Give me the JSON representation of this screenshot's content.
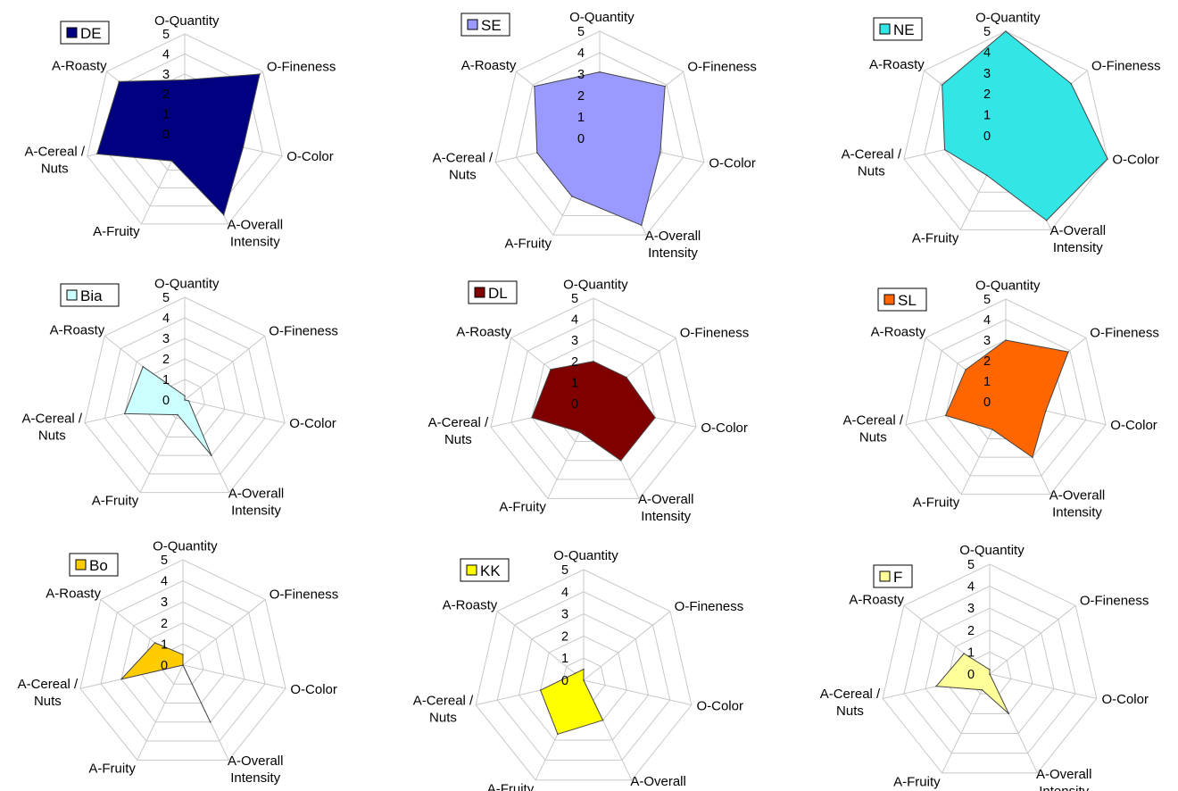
{
  "chart_data": [
    {
      "type": "radar",
      "name": "DE",
      "color": "#000080",
      "axes": [
        "O-Quantity",
        "O-Fineness",
        "O-Color",
        "A-Overall Intensity",
        "A-Fruity",
        "A-Cereal / Nuts",
        "A-Roasty"
      ],
      "ticks": [
        "0",
        "1",
        "2",
        "3",
        "4",
        "5"
      ],
      "rmax": 5,
      "values": [
        2.7,
        4.8,
        3.0,
        4.5,
        1.5,
        4.5,
        4.2
      ]
    },
    {
      "type": "radar",
      "name": "SE",
      "color": "#9999ff",
      "axes": [
        "O-Quantity",
        "O-Fineness",
        "O-Color",
        "A-Overall Intensity",
        "A-Fruity",
        "A-Cereal / Nuts",
        "A-Roasty"
      ],
      "ticks": [
        "0",
        "1",
        "2",
        "3",
        "4",
        "5"
      ],
      "rmax": 5,
      "values": [
        3.1,
        3.9,
        2.9,
        4.5,
        3.0,
        3.0,
        3.9
      ]
    },
    {
      "type": "radar",
      "name": "NE",
      "color": "#33e6e6",
      "axes": [
        "O-Quantity",
        "O-Fineness",
        "O-Color",
        "A-Overall Intensity",
        "A-Fruity",
        "A-Cereal / Nuts",
        "A-Roasty"
      ],
      "ticks": [
        "0",
        "1",
        "2",
        "3",
        "4",
        "5"
      ],
      "rmax": 5,
      "values": [
        5.0,
        4.0,
        5.0,
        4.5,
        2.1,
        3.0,
        3.9
      ]
    },
    {
      "type": "radar",
      "name": "Bia",
      "color": "#ccffff",
      "axes": [
        "O-Quantity",
        "O-Fineness",
        "O-Color",
        "A-Overall Intensity",
        "A-Fruity",
        "A-Cereal / Nuts",
        "A-Roasty"
      ],
      "ticks": [
        "0",
        "1",
        "2",
        "3",
        "4",
        "5"
      ],
      "rmax": 5,
      "values": [
        0.2,
        0.0,
        0.2,
        3.0,
        0.8,
        3.0,
        2.6
      ]
    },
    {
      "type": "radar",
      "name": "DL",
      "color": "#800000",
      "axes": [
        "O-Quantity",
        "O-Fineness",
        "O-Color",
        "A-Overall Intensity",
        "A-Fruity",
        "A-Cereal / Nuts",
        "A-Roasty"
      ],
      "ticks": [
        "0",
        "1",
        "2",
        "3",
        "4",
        "5"
      ],
      "rmax": 5,
      "values": [
        2.0,
        2.0,
        3.0,
        3.0,
        1.5,
        3.0,
        2.6
      ]
    },
    {
      "type": "radar",
      "name": "SL",
      "color": "#ff6600",
      "axes": [
        "O-Quantity",
        "O-Fineness",
        "O-Color",
        "A-Overall Intensity",
        "A-Fruity",
        "A-Cereal / Nuts",
        "A-Roasty"
      ],
      "ticks": [
        "0",
        "1",
        "2",
        "3",
        "4",
        "5"
      ],
      "rmax": 5,
      "values": [
        3.0,
        3.9,
        2.0,
        3.0,
        1.5,
        3.0,
        2.5
      ]
    },
    {
      "type": "radar",
      "name": "Bo",
      "color": "#ffcc00",
      "axes": [
        "O-Quantity",
        "O-Fineness",
        "O-Color",
        "A-Overall Intensity",
        "A-Fruity",
        "A-Cereal / Nuts",
        "A-Roasty"
      ],
      "ticks": [
        "0",
        "1",
        "2",
        "3",
        "4",
        "5"
      ],
      "rmax": 5,
      "values": [
        0.5,
        0.0,
        0.0,
        3.0,
        0.0,
        3.0,
        1.7
      ]
    },
    {
      "type": "radar",
      "name": "KK",
      "color": "#ffff00",
      "axes": [
        "O-Quantity",
        "O-Fineness",
        "O-Color",
        "A-Overall Intensity",
        "A-Fruity",
        "A-Cereal / Nuts",
        "A-Roasty"
      ],
      "ticks": [
        "0",
        "1",
        "2",
        "3",
        "4",
        "5"
      ],
      "rmax": 5,
      "values": [
        0.5,
        0.0,
        0.0,
        2.0,
        2.7,
        2.0,
        0.5
      ]
    },
    {
      "type": "radar",
      "name": "F",
      "color": "#ffff99",
      "axes": [
        "O-Quantity",
        "O-Fineness",
        "O-Color",
        "A-Overall Intensity",
        "A-Fruity",
        "A-Cereal / Nuts",
        "A-Roasty"
      ],
      "ticks": [
        "0",
        "1",
        "2",
        "3",
        "4",
        "5"
      ],
      "rmax": 5,
      "values": [
        0.2,
        0.0,
        0.0,
        2.0,
        0.8,
        2.5,
        1.5
      ]
    }
  ]
}
